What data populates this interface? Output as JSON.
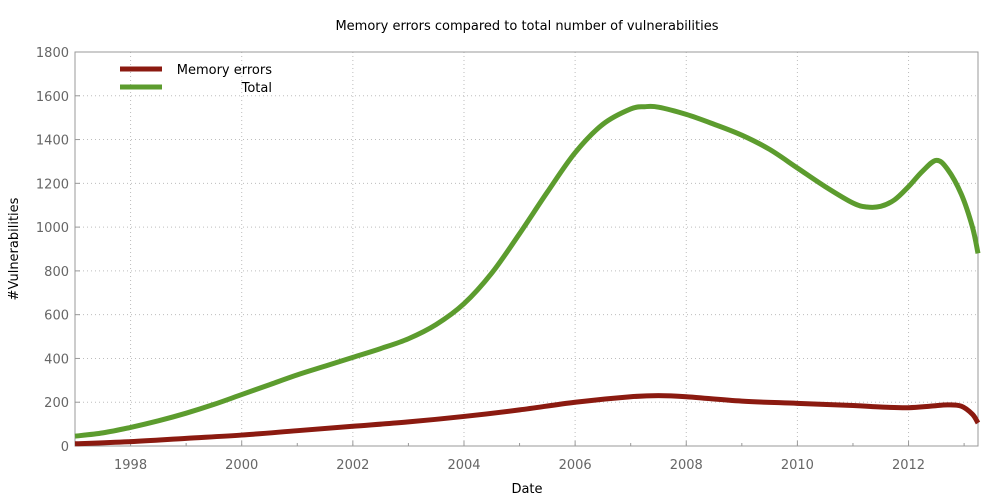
{
  "chart_data": {
    "type": "line",
    "title": "Memory errors compared to total number of vulnerabilities",
    "xlabel": "Date",
    "ylabel": "#Vulnerabilities",
    "xlim": [
      1997,
      2013.25
    ],
    "ylim": [
      0,
      1800
    ],
    "x_ticks": [
      1998,
      2000,
      2002,
      2004,
      2006,
      2008,
      2010,
      2012
    ],
    "y_ticks": [
      0,
      200,
      400,
      600,
      800,
      1000,
      1200,
      1400,
      1600,
      1800
    ],
    "grid": true,
    "legend": "top-left",
    "series": [
      {
        "name": "Memory errors",
        "color": "#8b1a10",
        "x": [
          1997,
          1998,
          1999,
          2000,
          2001,
          2002,
          2003,
          2004,
          2005,
          2006,
          2007,
          2007.5,
          2008,
          2009,
          2010,
          2011,
          2011.5,
          2012,
          2012.4,
          2012.7,
          2012.95,
          2013.15,
          2013.25
        ],
        "y": [
          10,
          20,
          35,
          50,
          70,
          90,
          110,
          135,
          165,
          200,
          225,
          230,
          225,
          205,
          195,
          185,
          178,
          175,
          182,
          188,
          182,
          145,
          105
        ]
      },
      {
        "name": "Total",
        "color": "#5c9c2e",
        "x": [
          1997,
          1997.5,
          1998,
          1998.5,
          1999,
          1999.5,
          2000,
          2000.5,
          2001,
          2001.5,
          2002,
          2002.5,
          2003,
          2003.5,
          2004,
          2004.5,
          2005,
          2005.5,
          2006,
          2006.5,
          2007,
          2007.25,
          2007.5,
          2008,
          2008.5,
          2009,
          2009.5,
          2010,
          2010.5,
          2011,
          2011.25,
          2011.5,
          2011.75,
          2012,
          2012.25,
          2012.5,
          2012.7,
          2012.95,
          2013.15,
          2013.25
        ],
        "y": [
          45,
          60,
          85,
          115,
          150,
          190,
          235,
          280,
          325,
          365,
          405,
          445,
          490,
          555,
          650,
          790,
          970,
          1160,
          1340,
          1470,
          1540,
          1550,
          1548,
          1515,
          1470,
          1420,
          1355,
          1270,
          1185,
          1110,
          1092,
          1095,
          1125,
          1185,
          1255,
          1305,
          1265,
          1150,
          1000,
          880
        ]
      }
    ]
  }
}
